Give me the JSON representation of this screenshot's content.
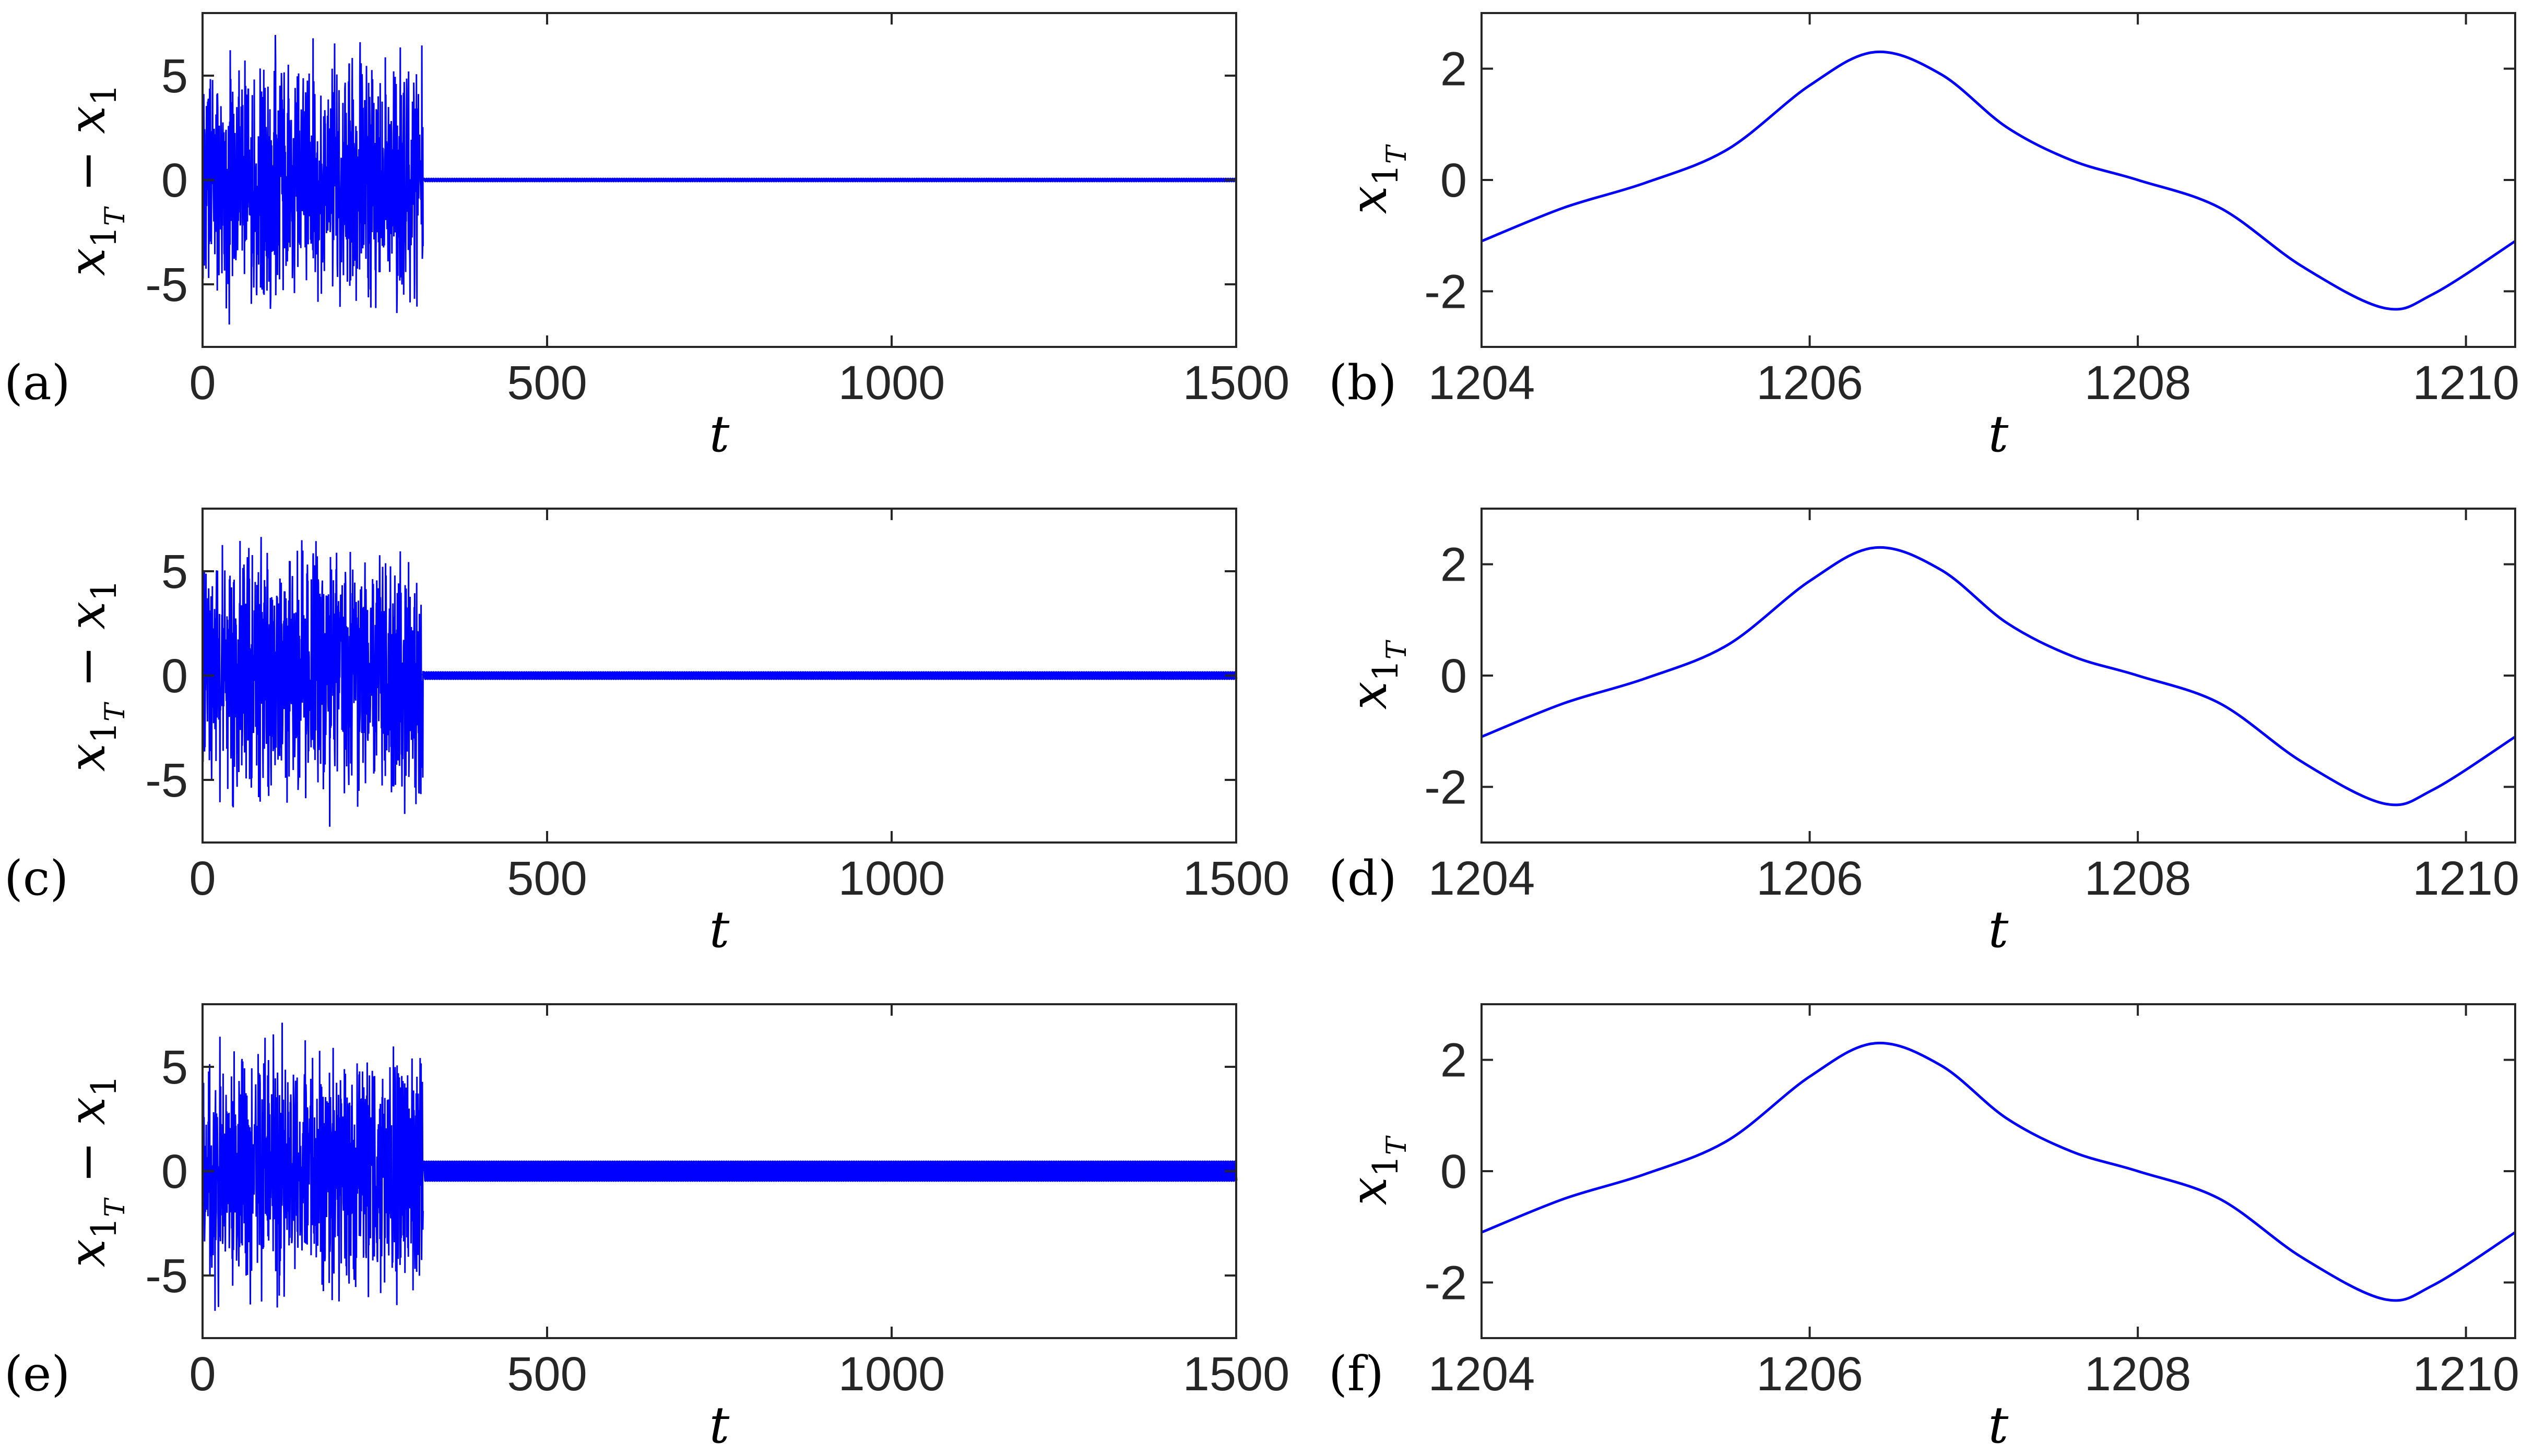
{
  "colors": {
    "line": "#0000ff",
    "axis": "#262626"
  },
  "chart_data": [
    {
      "type": "line",
      "panel_label": "(a)",
      "xlabel": "t",
      "ylabel": "x1T − x1",
      "xlim": [
        0,
        1500
      ],
      "ylim": [
        -8,
        8
      ],
      "xticks": [
        0,
        500,
        1000,
        1500
      ],
      "yticks": [
        -5,
        0,
        5
      ],
      "transient_end": 320,
      "transient_amplitude": 7.5,
      "residual_amplitude": 0.05,
      "series": [
        {
          "values_description_free": true,
          "x": [
            0,
            320,
            1500
          ],
          "y": [
            0,
            0,
            0
          ]
        }
      ]
    },
    {
      "type": "line",
      "panel_label": "(b)",
      "xlabel": "t",
      "ylabel": "x1T",
      "xlim": [
        1204,
        1210.3
      ],
      "ylim": [
        -3,
        3
      ],
      "xticks": [
        1204,
        1206,
        1208,
        1210
      ],
      "yticks": [
        -2,
        0,
        2
      ],
      "series": [
        {
          "x": [
            1204,
            1204.5,
            1205,
            1205.5,
            1206,
            1206.4,
            1206.8,
            1207.2,
            1207.6,
            1208,
            1208.5,
            1209,
            1209.5,
            1209.8,
            1210.3
          ],
          "y": [
            -1.1,
            -0.5,
            -0.05,
            0.55,
            1.7,
            2.3,
            1.9,
            0.95,
            0.35,
            0.0,
            -0.5,
            -1.55,
            -2.3,
            -2.05,
            -1.1
          ]
        }
      ]
    },
    {
      "type": "line",
      "panel_label": "(c)",
      "xlabel": "t",
      "ylabel": "x1T − x1",
      "xlim": [
        0,
        1500
      ],
      "ylim": [
        -8,
        8
      ],
      "xticks": [
        0,
        500,
        1000,
        1500
      ],
      "yticks": [
        -5,
        0,
        5
      ],
      "transient_end": 320,
      "transient_amplitude": 7.5,
      "residual_amplitude": 0.15,
      "series": [
        {
          "x": [
            0,
            320,
            1500
          ],
          "y": [
            0,
            0,
            0
          ]
        }
      ]
    },
    {
      "type": "line",
      "panel_label": "(d)",
      "xlabel": "t",
      "ylabel": "x1T",
      "xlim": [
        1204,
        1210.3
      ],
      "ylim": [
        -3,
        3
      ],
      "xticks": [
        1204,
        1206,
        1208,
        1210
      ],
      "yticks": [
        -2,
        0,
        2
      ],
      "series": [
        {
          "x": [
            1204,
            1204.5,
            1205,
            1205.5,
            1206,
            1206.4,
            1206.8,
            1207.2,
            1207.6,
            1208,
            1208.5,
            1209,
            1209.5,
            1209.8,
            1210.3
          ],
          "y": [
            -1.1,
            -0.5,
            -0.05,
            0.55,
            1.7,
            2.3,
            1.9,
            0.95,
            0.35,
            0.0,
            -0.5,
            -1.55,
            -2.3,
            -2.05,
            -1.1
          ]
        }
      ]
    },
    {
      "type": "line",
      "panel_label": "(e)",
      "xlabel": "t",
      "ylabel": "x1T − x1",
      "xlim": [
        0,
        1500
      ],
      "ylim": [
        -8,
        8
      ],
      "xticks": [
        0,
        500,
        1000,
        1500
      ],
      "yticks": [
        -5,
        0,
        5
      ],
      "transient_end": 320,
      "transient_amplitude": 7.5,
      "residual_amplitude": 0.45,
      "series": [
        {
          "x": [
            0,
            320,
            1500
          ],
          "y": [
            0,
            0,
            0
          ]
        }
      ]
    },
    {
      "type": "line",
      "panel_label": "(f)",
      "xlabel": "t",
      "ylabel": "x1T",
      "xlim": [
        1204,
        1210.3
      ],
      "ylim": [
        -3,
        3
      ],
      "xticks": [
        1204,
        1206,
        1208,
        1210
      ],
      "yticks": [
        -2,
        0,
        2
      ],
      "series": [
        {
          "x": [
            1204,
            1204.5,
            1205,
            1205.5,
            1206,
            1206.4,
            1206.8,
            1207.2,
            1207.6,
            1208,
            1208.5,
            1209,
            1209.5,
            1209.8,
            1210.3
          ],
          "y": [
            -1.1,
            -0.5,
            -0.05,
            0.55,
            1.7,
            2.3,
            1.9,
            0.95,
            0.35,
            0.0,
            -0.5,
            -1.55,
            -2.3,
            -2.05,
            -1.1
          ]
        }
      ]
    }
  ]
}
